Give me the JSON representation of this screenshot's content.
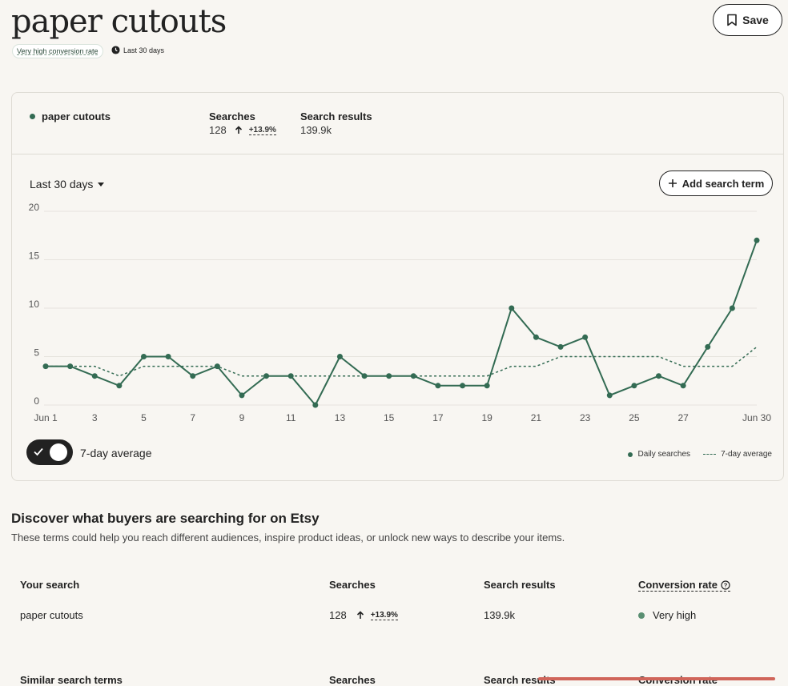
{
  "header": {
    "title": "paper cutouts",
    "conversion_badge": "Very high conversion rate",
    "range_badge": "Last 30 days",
    "save_label": "Save"
  },
  "summary": {
    "term": "paper cutouts",
    "searches_label": "Searches",
    "searches_value": "128",
    "searches_delta": "+13.9%",
    "results_label": "Search results",
    "results_value": "139.9k"
  },
  "controls": {
    "range_select": "Last 30 days",
    "add_term_label": "Add search term",
    "toggle_label": "7-day average"
  },
  "chart_data": {
    "type": "line",
    "x": [
      "Jun 1",
      "2",
      "3",
      "4",
      "5",
      "6",
      "7",
      "8",
      "9",
      "10",
      "11",
      "12",
      "13",
      "14",
      "15",
      "16",
      "17",
      "18",
      "19",
      "20",
      "21",
      "22",
      "23",
      "24",
      "25",
      "26",
      "27",
      "28",
      "29",
      "Jun 30"
    ],
    "x_tick_labels": [
      "Jun 1",
      "3",
      "5",
      "7",
      "9",
      "11",
      "13",
      "15",
      "17",
      "19",
      "21",
      "23",
      "25",
      "27",
      "Jun 30"
    ],
    "y_tick_labels": [
      "0",
      "5",
      "10",
      "15",
      "20"
    ],
    "ylim": [
      0,
      20
    ],
    "series": [
      {
        "name": "Daily searches",
        "style": "solid-with-markers",
        "values": [
          4,
          4,
          3,
          2,
          5,
          5,
          3,
          4,
          1,
          3,
          3,
          0,
          5,
          3,
          3,
          3,
          2,
          2,
          2,
          10,
          7,
          6,
          7,
          1,
          2,
          3,
          2,
          6,
          10,
          17
        ]
      },
      {
        "name": "7-day average",
        "style": "dashed",
        "values": [
          4,
          4,
          4,
          3,
          4,
          4,
          4,
          4,
          3,
          3,
          3,
          3,
          3,
          3,
          3,
          3,
          3,
          3,
          3,
          4,
          4,
          5,
          5,
          5,
          5,
          5,
          4,
          4,
          4,
          6
        ]
      }
    ],
    "grid": "horizontal",
    "legend_position": "bottom-right",
    "color": "#336b53"
  },
  "discover": {
    "title": "Discover what buyers are searching for on Etsy",
    "subtitle": "These terms could help you reach different audiences, inspire product ideas, or unlock new ways to describe your items."
  },
  "table": {
    "headers": {
      "term": "Your search",
      "searches": "Searches",
      "results": "Search results",
      "conversion": "Conversion rate"
    },
    "row": {
      "term": "paper cutouts",
      "searches": "128",
      "delta": "+13.9%",
      "results": "139.9k",
      "conversion": "Very high"
    }
  },
  "similar": {
    "headers": {
      "term": "Similar search terms",
      "searches": "Searches",
      "results": "Search results",
      "conversion": "Conversion rate"
    }
  }
}
